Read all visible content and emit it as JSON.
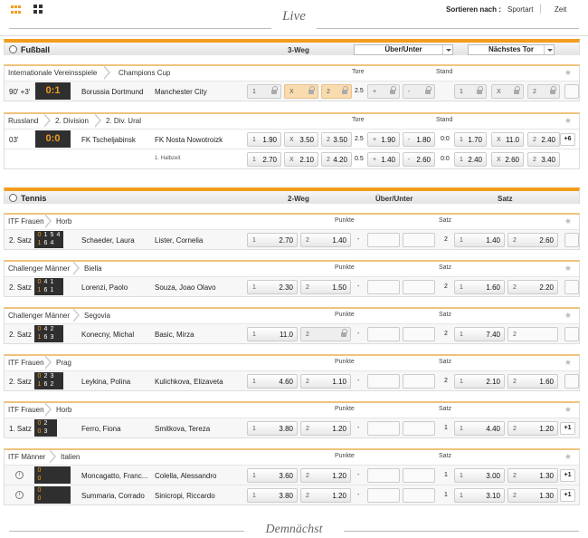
{
  "header": {
    "live": "Live",
    "sort_label": "Sortieren nach :",
    "sort_options": [
      "Sportart",
      "Zeit"
    ]
  },
  "football": {
    "name": "Fußball",
    "col_3weg": "3-Weg",
    "dropdown1": "Über/Unter",
    "dropdown2": "Nächstes Tor",
    "leagues": [
      {
        "crumbs": [
          "Internationale Vereinsspiele",
          "Champions Cup"
        ],
        "tore": "Tore",
        "stand": "Stand",
        "events": [
          {
            "time": "90' +3'",
            "score": "0:1",
            "home": "Borussia Dortmund",
            "away": "Manchester City",
            "line": "2.5"
          }
        ]
      },
      {
        "crumbs": [
          "Russland",
          "2. Division",
          "2. Div. Ural"
        ],
        "tore": "Tore",
        "stand": "Stand",
        "events": [
          {
            "time": "03'",
            "score": "0:0",
            "home": "FK Tscheljabinsk",
            "away": "FK Nosta Nowotroizk",
            "o1": "1.90",
            "ox": "3.50",
            "o2": "3.50",
            "line": "2.5",
            "ov": "1.90",
            "un": "1.80",
            "standv": "0:0",
            "n1": "1.70",
            "nx": "11.0",
            "n2": "2.40",
            "more": "+6"
          },
          {
            "sub": "1. Halbzeit",
            "o1": "2.70",
            "ox": "2.10",
            "o2": "4.20",
            "line": "0.5",
            "ov": "1.40",
            "un": "2.60",
            "standv": "0:0",
            "n1": "2.40",
            "nx": "2.60",
            "n2": "3.40"
          }
        ]
      }
    ]
  },
  "tennis": {
    "name": "Tennis",
    "col_2weg": "2-Weg",
    "col_ou": "Über/Unter",
    "col_satz": "Satz",
    "punkte": "Punkte",
    "satz": "Satz",
    "leagues": [
      {
        "crumbs": [
          "ITF Frauen",
          "Horb"
        ],
        "event": {
          "state": "2. Satz",
          "sets": [
            [
              "0",
              "1",
              "5",
              "4"
            ],
            [
              "1",
              "6",
              "4",
              ""
            ]
          ],
          "home": "Schaeder, Laura",
          "away": "Lister, Cornelia",
          "o1": "2.70",
          "o2": "1.40",
          "dash": "-",
          "satz": "2",
          "s1": "1.40",
          "s2": "2.60"
        }
      },
      {
        "crumbs": [
          "Challenger Männer",
          "Biella"
        ],
        "event": {
          "state": "2. Satz",
          "sets": [
            [
              "0",
              "4",
              "1",
              ""
            ],
            [
              "1",
              "6",
              "1",
              ""
            ]
          ],
          "home": "Lorenzi, Paolo",
          "away": "Souza, Joao Olavo",
          "o1": "2.30",
          "o2": "1.50",
          "dash": "-",
          "satz": "2",
          "s1": "1.60",
          "s2": "2.20"
        }
      },
      {
        "crumbs": [
          "Challenger Männer",
          "Segovia"
        ],
        "event": {
          "state": "2. Satz",
          "sets": [
            [
              "0",
              "4",
              "2",
              ""
            ],
            [
              "1",
              "6",
              "3",
              ""
            ]
          ],
          "home": "Konecny, Michal",
          "away": "Basic, Mirza",
          "o1": "11.0",
          "o2": "",
          "dash": "-",
          "satz": "2",
          "s1": "7.40",
          "s2": ""
        }
      },
      {
        "crumbs": [
          "ITF Frauen",
          "Prag"
        ],
        "event": {
          "state": "2. Satz",
          "sets": [
            [
              "0",
              "2",
              "3",
              ""
            ],
            [
              "1",
              "6",
              "2",
              ""
            ]
          ],
          "home": "Leykina, Polina",
          "away": "Kulichkova, Elizaveta",
          "o1": "4.60",
          "o2": "1.10",
          "dash": "-",
          "satz": "2",
          "s1": "2.10",
          "s2": "1.60"
        }
      },
      {
        "crumbs": [
          "ITF Frauen",
          "Horb"
        ],
        "event": {
          "state": "1. Satz",
          "sets": [
            [
              "0",
              "2",
              ""
            ],
            [
              "0",
              "3",
              ""
            ]
          ],
          "home": "Ferro, Fiona",
          "away": "Smitkova, Tereza",
          "o1": "3.80",
          "o2": "1.20",
          "dash": "-",
          "satz": "1",
          "s1": "4.40",
          "s2": "1.20",
          "more": "+1"
        }
      },
      {
        "crumbs": [
          "ITF Männer",
          "Italien"
        ],
        "events": [
          {
            "sets": [
              "0",
              "0"
            ],
            "home": "Moncagatto, Franc...",
            "away": "Colella, Alessandro",
            "o1": "3.60",
            "o2": "1.20",
            "dash": "-",
            "satz": "1",
            "s1": "3.00",
            "s2": "1.30",
            "more": "+1"
          },
          {
            "sets": [
              "0",
              "0"
            ],
            "home": "Summaria, Corrado",
            "away": "Sinicropi, Riccardo",
            "o1": "3.80",
            "o2": "1.20",
            "dash": "-",
            "satz": "1",
            "s1": "3.10",
            "s2": "1.30",
            "more": "+1"
          }
        ]
      }
    ]
  },
  "footer": {
    "upcoming": "Demnächst"
  },
  "keys": {
    "one": "1",
    "x": "X",
    "two": "2",
    "plus": "+",
    "minus": "-"
  },
  "colors": {
    "accent": "#f29d1e",
    "score_bg": "#2f2f2f"
  }
}
